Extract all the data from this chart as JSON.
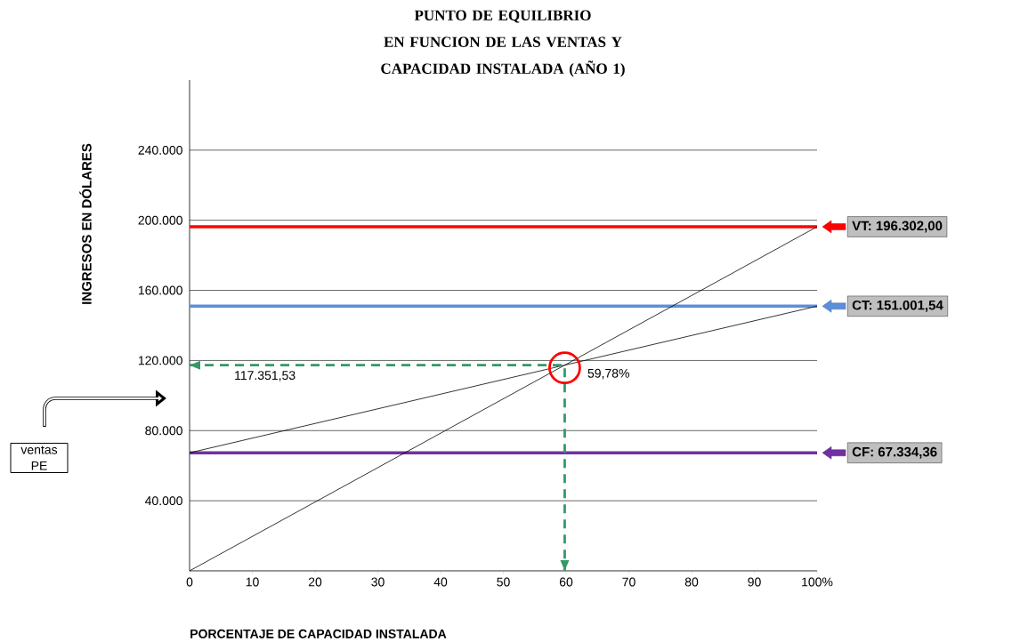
{
  "chart_data": {
    "type": "line",
    "title": "PUNTO DE EQUILIBRIO",
    "subtitle": "EN FUNCION DE LAS VENTAS Y CAPACIDAD INSTALADA (AÑO 1)",
    "xlabel": "PORCENTAJE DE CAPACIDAD INSTALADA",
    "ylabel": "INGRESOS EN DÓLARES",
    "xlim": [
      0,
      100
    ],
    "ylim": [
      0,
      280000
    ],
    "xticks": [
      0,
      10,
      20,
      30,
      40,
      50,
      60,
      70,
      80,
      90,
      {
        "value": 100,
        "label": "100%"
      }
    ],
    "yticks": [
      {
        "value": 40000,
        "label": "40.000"
      },
      {
        "value": 80000,
        "label": "80.000"
      },
      {
        "value": 120000,
        "label": "120.000"
      },
      {
        "value": 160000,
        "label": "160.000"
      },
      {
        "value": 200000,
        "label": "200.000"
      },
      {
        "value": 240000,
        "label": "240.000"
      }
    ],
    "grid": "y",
    "series": [
      {
        "color": "#000000",
        "x": [
          0,
          100
        ],
        "values": [
          0,
          196302
        ]
      },
      {
        "color": "#000000",
        "x": [
          0,
          100
        ],
        "values": [
          67334.36,
          151001.54
        ]
      },
      {
        "color": "#339966",
        "line_style": "dashed",
        "x": [
          0,
          59.78,
          59.78
        ],
        "values": [
          117351.53,
          117351.53,
          0
        ]
      }
    ],
    "ref_lines": [
      {
        "axis": "y",
        "value": 196302,
        "label": "VT: 196.302,00",
        "color": "#ff0000"
      },
      {
        "axis": "y",
        "value": 151001.54,
        "label": "CT: 151.001,54",
        "color": "#5b8fd9"
      },
      {
        "axis": "y",
        "value": 67334.36,
        "label": "CF: 67.334,36",
        "color": "#7030a0"
      }
    ],
    "annotations": [
      {
        "text": "117.351,53",
        "x": 12,
        "y": 117351.53
      },
      {
        "text": "59,78%",
        "x": 59.78,
        "y": 117351.53
      },
      "ventas PE"
    ]
  }
}
